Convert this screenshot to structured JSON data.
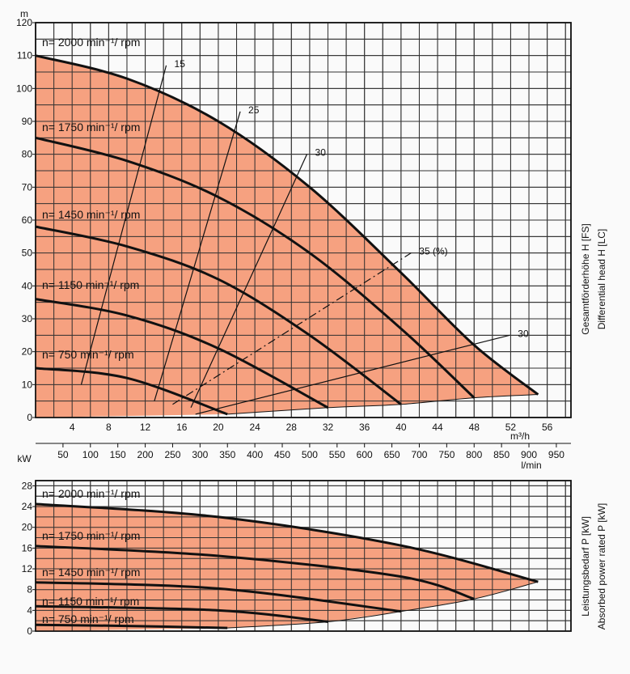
{
  "chart_data": [
    {
      "type": "line",
      "name": "head",
      "ylabel": "m",
      "xlabel_flow": "m³/h",
      "xlabel_lmin": "l/min",
      "right_label_de": "Gesamtförderhöhe   H [FS]",
      "right_label_en": "Differential head   H [LC]",
      "xlim": [
        0,
        58.6
      ],
      "ylim": [
        0,
        120
      ],
      "x_ticks": [
        4,
        8,
        12,
        16,
        20,
        24,
        28,
        32,
        36,
        40,
        44,
        48,
        52,
        56
      ],
      "y_ticks": [
        0,
        10,
        20,
        30,
        40,
        50,
        60,
        70,
        80,
        90,
        100,
        110,
        120
      ],
      "lmin_ticks": [
        50,
        100,
        150,
        200,
        250,
        300,
        350,
        400,
        450,
        500,
        550,
        600,
        650,
        700,
        750,
        800,
        850,
        900,
        950
      ],
      "grid": true,
      "fill_color": "#f5916a",
      "series": [
        {
          "name": "n= 2000 min⁻¹/ rpm",
          "x": [
            0,
            10,
            20,
            30,
            40,
            48,
            55
          ],
          "y": [
            110,
            103,
            90,
            70,
            44,
            22,
            7
          ]
        },
        {
          "name": "n= 1750 min⁻¹/ rpm",
          "x": [
            0,
            10,
            20,
            30,
            40,
            48
          ],
          "y": [
            85,
            78,
            67,
            50,
            27,
            6
          ]
        },
        {
          "name": "n= 1450 min⁻¹/ rpm",
          "x": [
            0,
            10,
            20,
            30,
            40
          ],
          "y": [
            58,
            52,
            42,
            25,
            4
          ]
        },
        {
          "name": "n= 1150 min⁻¹/ rpm",
          "x": [
            0,
            10,
            20,
            32
          ],
          "y": [
            36,
            31,
            21,
            3
          ]
        },
        {
          "name": "n= 750 min⁻¹/ rpm",
          "x": [
            0,
            10,
            21
          ],
          "y": [
            15,
            12,
            1
          ]
        }
      ],
      "efficiency_lines": [
        {
          "label": "15",
          "x": [
            5,
            14.3
          ],
          "y": [
            10,
            107
          ]
        },
        {
          "label": "25",
          "x": [
            13,
            22.4
          ],
          "y": [
            5,
            93
          ]
        },
        {
          "label": "30",
          "x": [
            17,
            29.7
          ],
          "y": [
            3,
            80
          ]
        },
        {
          "label": "35 (%)",
          "x": [
            15,
            41.1
          ],
          "y": [
            4,
            50
          ],
          "style": "dashdot"
        },
        {
          "label": "30",
          "x": [
            17.5,
            51.9
          ],
          "y": [
            1,
            25
          ]
        }
      ],
      "lower_boundary": {
        "x": [
          21,
          32,
          40,
          48,
          55
        ],
        "y": [
          1,
          3,
          4,
          6,
          7
        ]
      }
    },
    {
      "type": "line",
      "name": "power",
      "ylabel": "kW",
      "right_label_de": "Leistungsbedarf   P [kW]",
      "right_label_en": "Absorbed power rated   P [kW]",
      "xlim": [
        0,
        58.6
      ],
      "ylim": [
        0,
        29
      ],
      "y_ticks": [
        0,
        4,
        8,
        12,
        16,
        20,
        24,
        28
      ],
      "grid": true,
      "fill_color": "#f5916a",
      "series": [
        {
          "name": "n= 2000 min⁻¹/ rpm",
          "x": [
            0,
            20,
            40,
            55
          ],
          "y": [
            24.5,
            22,
            16.5,
            9.5
          ]
        },
        {
          "name": "n= 1750 min⁻¹/ rpm",
          "x": [
            0,
            20,
            40,
            48
          ],
          "y": [
            16.4,
            14.5,
            10.5,
            6.2
          ]
        },
        {
          "name": "n= 1450 min⁻¹/ rpm",
          "x": [
            0,
            20,
            40
          ],
          "y": [
            9.4,
            8.2,
            3.8
          ]
        },
        {
          "name": "n= 1150 min⁻¹/ rpm",
          "x": [
            0,
            20,
            32
          ],
          "y": [
            4.8,
            4.0,
            1.8
          ]
        },
        {
          "name": "n= 750 min⁻¹/ rpm",
          "x": [
            0,
            10,
            21
          ],
          "y": [
            1.2,
            1.0,
            0.6
          ]
        }
      ],
      "lower_boundary": {
        "x": [
          21,
          32,
          40,
          48,
          55
        ],
        "y": [
          0.6,
          1.8,
          3.8,
          6.2,
          9.5
        ]
      }
    }
  ],
  "labels": {
    "unit_m": "m",
    "unit_kw": "kW",
    "flow_unit": "m³/h",
    "lmin_unit": "l/min",
    "rpm_prefix": "n=",
    "rpm_min": "min",
    "rpm_sup": "−1",
    "rpm_suffix": "/ rpm"
  }
}
